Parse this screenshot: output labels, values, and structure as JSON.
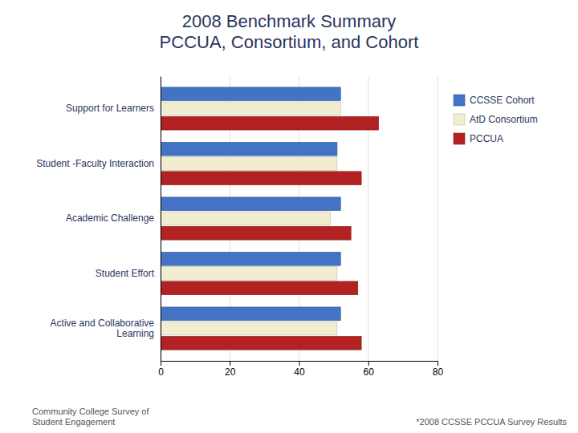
{
  "chart_data": {
    "type": "bar",
    "orientation": "horizontal",
    "title": "2008 Benchmark Summary\nPCCUA, Consortium, and Cohort",
    "categories": [
      "Active and Collaborative\nLearning",
      "Student Effort",
      "Academic Challenge",
      "Student -Faculty Interaction",
      "Support for Learners"
    ],
    "series": [
      {
        "name": "CCSSE Cohort",
        "color": "#4472C4",
        "values": [
          52,
          52,
          52,
          51,
          52
        ]
      },
      {
        "name": "AtD Consortium",
        "color": "#F0EDD0",
        "values": [
          51,
          51,
          49,
          51,
          52
        ]
      },
      {
        "name": "PCCUA",
        "color": "#B22222",
        "values": [
          58,
          57,
          55,
          58,
          63
        ]
      }
    ],
    "xlim": [
      0,
      80
    ],
    "xticks": [
      0,
      20,
      40,
      60,
      80
    ],
    "grid": true,
    "legend": "right",
    "annotations": [
      "*2008 CCSSE  PCCUA Survey Results",
      "Community College Survey of\nStudent Engagement"
    ]
  }
}
